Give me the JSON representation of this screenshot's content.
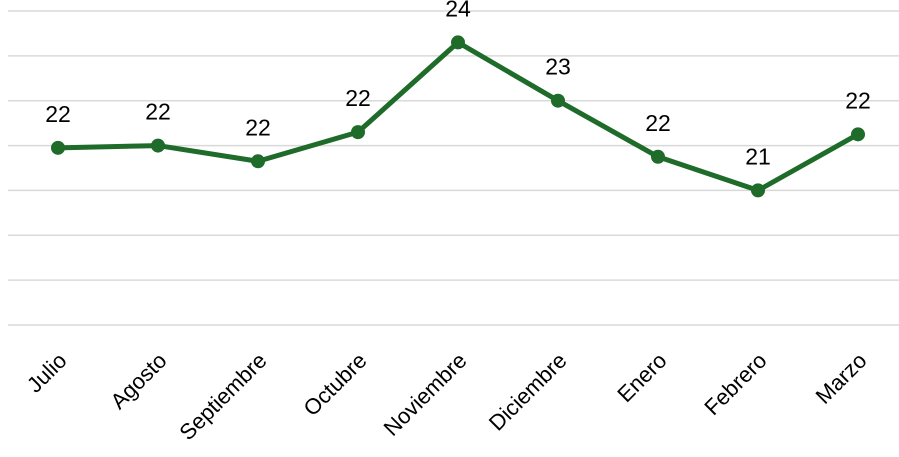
{
  "chart_data": {
    "type": "line",
    "categories": [
      "Julio",
      "Agosto",
      "Septiembre",
      "Octubre",
      "Noviembre",
      "Diciembre",
      "Enero",
      "Febrero",
      "Marzo"
    ],
    "series": [
      {
        "values": [
          21.95,
          22.0,
          21.65,
          22.3,
          24.3,
          23.0,
          21.75,
          21.0,
          22.25
        ],
        "data_labels": [
          "22",
          "22",
          "22",
          "22",
          "24",
          "23",
          "22",
          "21",
          "22"
        ],
        "color": "#1e6b2a"
      }
    ],
    "ylim": [
      18,
      25
    ],
    "grid": true,
    "legend": "none",
    "gridline_color": "#d9d9d9"
  }
}
